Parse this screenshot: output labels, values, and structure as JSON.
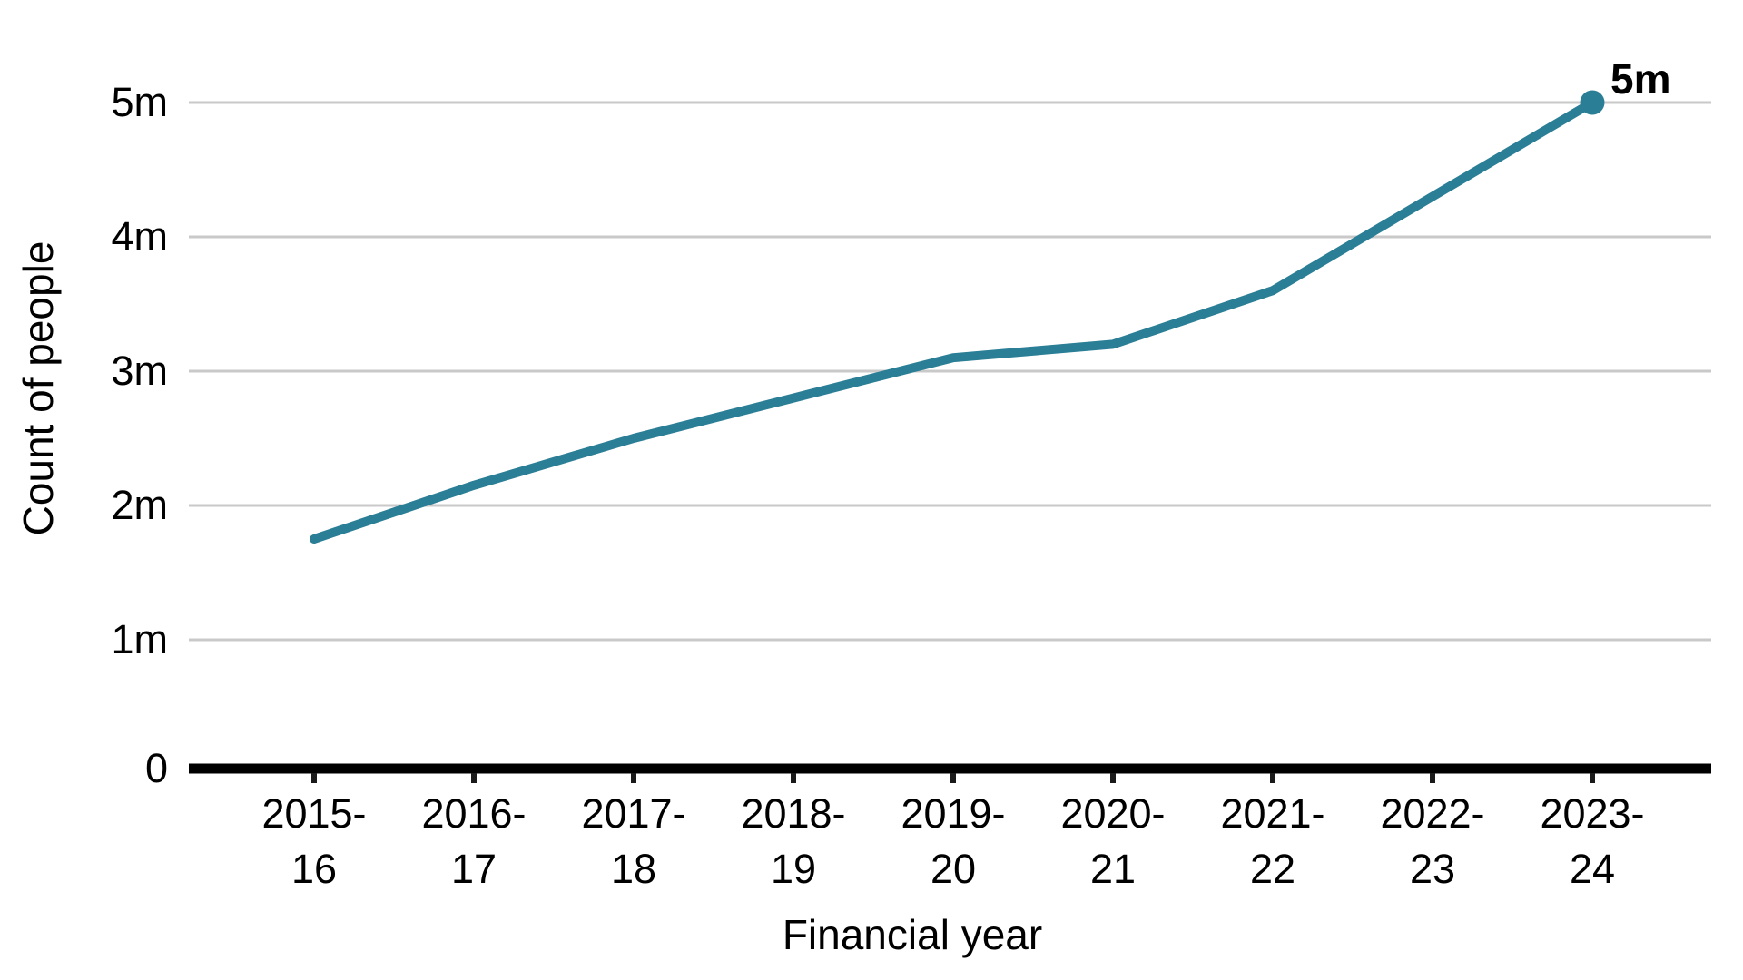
{
  "chart_data": {
    "type": "line",
    "title": "",
    "xlabel": "Financial year",
    "ylabel": "Count of people",
    "categories": [
      "2015-16",
      "2016-17",
      "2017-18",
      "2018-19",
      "2019-20",
      "2020-21",
      "2021-22",
      "2022-23",
      "2023-24"
    ],
    "x_tick_labels": [
      "2015-\n16",
      "2016-\n17",
      "2017-\n18",
      "2018-\n19",
      "2019-\n20",
      "2020-\n21",
      "2021-\n22",
      "2022-\n23",
      "2023-\n24"
    ],
    "y_tick_labels": [
      "5m",
      "4m",
      "3m",
      "2m",
      "1m",
      "0"
    ],
    "y_tick_values": [
      5,
      4,
      3,
      2,
      1,
      0
    ],
    "series": [
      {
        "name": "Count of people",
        "values_millions": [
          1.75,
          2.15,
          2.5,
          2.8,
          3.1,
          3.2,
          3.6,
          4.3,
          5.0
        ]
      }
    ],
    "end_point_annotation": "5m",
    "ylim": [
      0,
      5.3
    ],
    "grid": "horizontal gridlines only",
    "legend": "none",
    "marker": "filled circle on last point only",
    "colors": {
      "line": "#2a7e95",
      "marker": "#2a7e95",
      "gridline": "#c9c9c9",
      "axis": "#000000",
      "text": "#000000"
    }
  }
}
